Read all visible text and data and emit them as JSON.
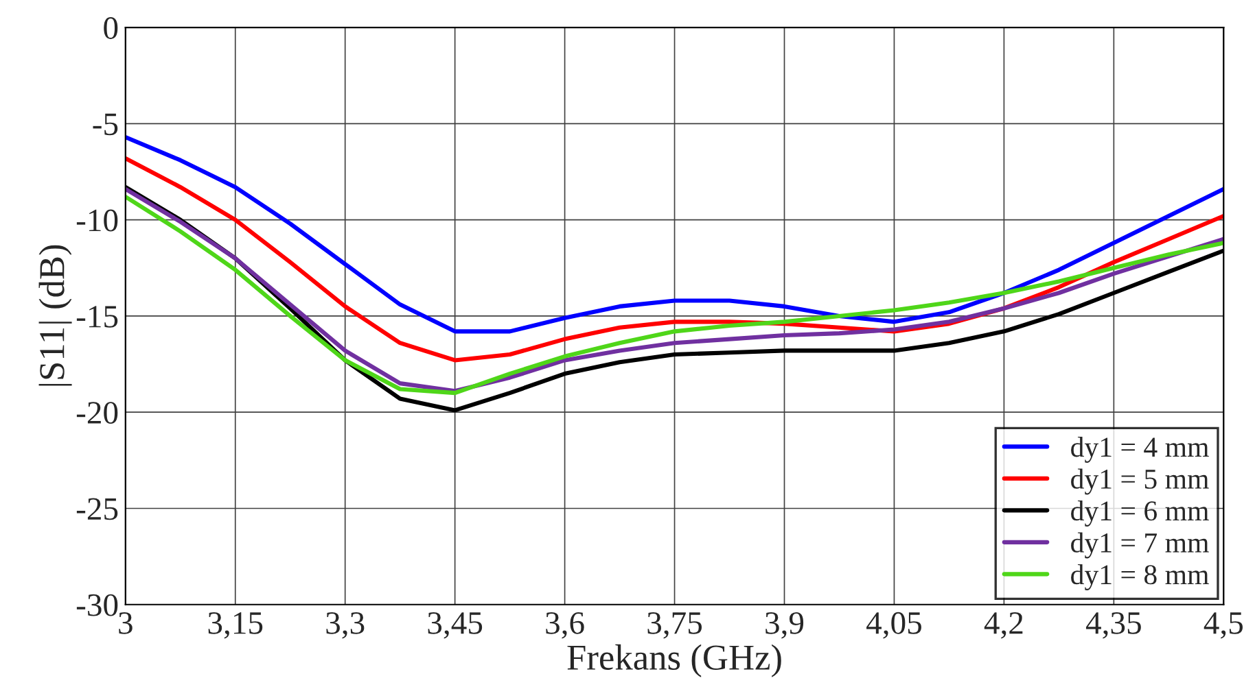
{
  "chart_data": {
    "type": "line",
    "xlabel": "Frekans (GHz)",
    "ylabel": "|S11| (dB)",
    "xlim": [
      3,
      4.5
    ],
    "ylim": [
      -30,
      0
    ],
    "xticks": [
      3,
      {
        "value": 3.15,
        "label": "3,15"
      },
      {
        "value": 3.3,
        "label": "3,3"
      },
      {
        "value": 3.45,
        "label": "3,45"
      },
      {
        "value": 3.6,
        "label": "3,6"
      },
      {
        "value": 3.75,
        "label": "3,75"
      },
      {
        "value": 3.9,
        "label": "3,9"
      },
      {
        "value": 4.05,
        "label": "4,05"
      },
      {
        "value": 4.2,
        "label": "4,2"
      },
      {
        "value": 4.35,
        "label": "4,35"
      },
      {
        "value": 4.5,
        "label": "4,5"
      }
    ],
    "yticks": [
      -30,
      -25,
      -20,
      -15,
      -10,
      -5,
      0
    ],
    "x": [
      3,
      3.075,
      3.15,
      3.225,
      3.3,
      3.375,
      3.45,
      3.525,
      3.6,
      3.675,
      3.75,
      3.825,
      3.9,
      3.975,
      4.05,
      4.125,
      4.2,
      4.275,
      4.35,
      4.425,
      4.5
    ],
    "series": [
      {
        "name": "dy1 = 4 mm",
        "color": "#0000ff",
        "values": [
          -5.7,
          -6.9,
          -8.3,
          -10.2,
          -12.3,
          -14.4,
          -15.8,
          -15.8,
          -15.1,
          -14.5,
          -14.2,
          -14.2,
          -14.5,
          -15.0,
          -15.3,
          -14.8,
          -13.8,
          -12.6,
          -11.2,
          -9.8,
          -8.4
        ]
      },
      {
        "name": "dy1 = 5 mm",
        "color": "#ff0000",
        "values": [
          -6.8,
          -8.3,
          -10.0,
          -12.2,
          -14.5,
          -16.4,
          -17.3,
          -17.0,
          -16.2,
          -15.6,
          -15.3,
          -15.3,
          -15.4,
          -15.6,
          -15.8,
          -15.4,
          -14.6,
          -13.5,
          -12.2,
          -11.0,
          -9.8
        ]
      },
      {
        "name": "dy1 = 6 mm",
        "color": "#000000",
        "values": [
          -8.3,
          -10.0,
          -12.0,
          -14.6,
          -17.3,
          -19.3,
          -19.9,
          -19.0,
          -18.0,
          -17.4,
          -17.0,
          -16.9,
          -16.8,
          -16.8,
          -16.8,
          -16.4,
          -15.8,
          -14.9,
          -13.8,
          -12.7,
          -11.6
        ]
      },
      {
        "name": "dy1 = 7 mm",
        "color": "#7030a0",
        "values": [
          -8.4,
          -10.1,
          -12.0,
          -14.4,
          -16.8,
          -18.5,
          -18.9,
          -18.2,
          -17.3,
          -16.8,
          -16.4,
          -16.2,
          -16.0,
          -15.9,
          -15.7,
          -15.3,
          -14.6,
          -13.8,
          -12.8,
          -11.9,
          -11.0
        ]
      },
      {
        "name": "dy1 = 8 mm",
        "color": "#4fd619",
        "values": [
          -8.8,
          -10.6,
          -12.6,
          -15.0,
          -17.3,
          -18.8,
          -19.0,
          -18.0,
          -17.1,
          -16.4,
          -15.8,
          -15.5,
          -15.3,
          -15.0,
          -14.7,
          -14.3,
          -13.8,
          -13.2,
          -12.5,
          -11.8,
          -11.2
        ]
      }
    ],
    "grid": true,
    "legend": "lower right",
    "line_style": "solid",
    "marker": "none"
  }
}
